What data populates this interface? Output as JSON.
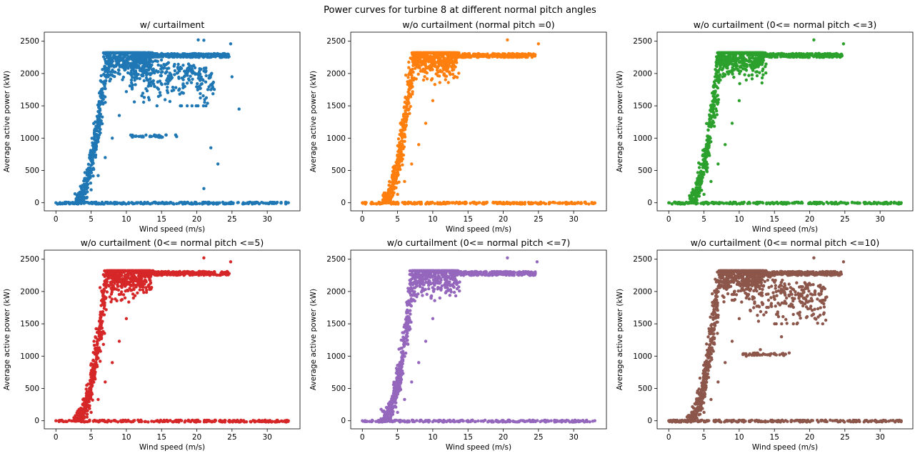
{
  "figure": {
    "suptitle": "Power curves for turbine 8 at different normal pitch angles"
  },
  "chart_data": [
    {
      "type": "scatter",
      "title": "w/ curtailment",
      "xlabel": "Wind speed (m/s)",
      "ylabel": "Average active power (kW)",
      "xlim": [
        -1.65,
        34.65
      ],
      "ylim": [
        -125,
        2640
      ],
      "xticks": [
        0,
        5,
        10,
        15,
        20,
        25,
        30
      ],
      "yticks": [
        0,
        500,
        1000,
        1500,
        2000,
        2500
      ],
      "color": "#1f77b4",
      "curtailed": true,
      "grid": false,
      "series": [
        {
          "points": [
            [
              0,
              0
            ],
            [
              2,
              0
            ],
            [
              3,
              10
            ],
            [
              4,
              60
            ],
            [
              5,
              200
            ],
            [
              6,
              420
            ],
            [
              7,
              700
            ],
            [
              8,
              1000
            ],
            [
              9,
              1350
            ],
            [
              10,
              1720
            ],
            [
              11,
              2050
            ],
            [
              12,
              2270
            ],
            [
              13,
              2310
            ],
            [
              15,
              2310
            ],
            [
              18,
              2300
            ],
            [
              21,
              2290
            ],
            [
              23,
              2275
            ],
            [
              24.5,
              2270
            ],
            [
              11,
              1030
            ],
            [
              14,
              1050
            ],
            [
              17,
              1050
            ],
            [
              14,
              1800
            ],
            [
              18,
              1700
            ],
            [
              22,
              1750
            ],
            [
              20.2,
              2520
            ],
            [
              21,
              2515
            ],
            [
              24.8,
              2460
            ],
            [
              26,
              1450
            ],
            [
              22,
              850
            ],
            [
              23,
              600
            ],
            [
              21,
              220
            ],
            [
              25,
              1950
            ],
            [
              33,
              0
            ]
          ]
        }
      ]
    },
    {
      "type": "scatter",
      "title": "w/o curtailment (normal pitch =0)",
      "xlabel": "Wind speed (m/s)",
      "ylabel": "Average active power (kW)",
      "xlim": [
        -1.65,
        34.65
      ],
      "ylim": [
        -125,
        2640
      ],
      "xticks": [
        0,
        5,
        10,
        15,
        20,
        25,
        30
      ],
      "yticks": [
        0,
        500,
        1000,
        1500,
        2000,
        2500
      ],
      "color": "#ff7f0e",
      "curtailed": false,
      "grid": false,
      "series": [
        {
          "points": [
            [
              0,
              0
            ],
            [
              3,
              10
            ],
            [
              4,
              40
            ],
            [
              5,
              130
            ],
            [
              6,
              330
            ],
            [
              7,
              600
            ],
            [
              8,
              900
            ],
            [
              9,
              1230
            ],
            [
              10,
              1580
            ],
            [
              11,
              1860
            ],
            [
              12,
              2050
            ],
            [
              13.7,
              2300
            ],
            [
              16,
              2300
            ],
            [
              20,
              2290
            ],
            [
              24.5,
              2270
            ],
            [
              20.6,
              2520
            ],
            [
              25,
              2460
            ],
            [
              33,
              0
            ]
          ]
        }
      ]
    },
    {
      "type": "scatter",
      "title": "w/o curtailment (0<= normal pitch <=3)",
      "xlabel": "Wind speed (m/s)",
      "ylabel": "Average active power (kW)",
      "xlim": [
        -1.65,
        34.65
      ],
      "ylim": [
        -125,
        2640
      ],
      "xticks": [
        0,
        5,
        10,
        15,
        20,
        25,
        30
      ],
      "yticks": [
        0,
        500,
        1000,
        1500,
        2000,
        2500
      ],
      "color": "#2ca02c",
      "curtailed": false,
      "grid": false,
      "series": [
        {
          "points": [
            [
              0,
              0
            ],
            [
              3,
              10
            ],
            [
              4,
              40
            ],
            [
              5,
              130
            ],
            [
              6,
              330
            ],
            [
              7,
              600
            ],
            [
              8,
              900
            ],
            [
              9,
              1230
            ],
            [
              10,
              1580
            ],
            [
              11,
              1900
            ],
            [
              12,
              2150
            ],
            [
              13,
              2300
            ],
            [
              16,
              2310
            ],
            [
              20,
              2290
            ],
            [
              24.5,
              2270
            ],
            [
              20.6,
              2520
            ],
            [
              24.8,
              2460
            ],
            [
              33,
              0
            ]
          ]
        }
      ]
    },
    {
      "type": "scatter",
      "title": "w/o curtailment (0<= normal pitch <=5)",
      "xlabel": "Wind speed (m/s)",
      "ylabel": "Average active power (kW)",
      "xlim": [
        -1.65,
        34.65
      ],
      "ylim": [
        -125,
        2640
      ],
      "xticks": [
        0,
        5,
        10,
        15,
        20,
        25,
        30
      ],
      "yticks": [
        0,
        500,
        1000,
        1500,
        2000,
        2500
      ],
      "color": "#d62728",
      "curtailed": false,
      "grid": false,
      "series": [
        {
          "points": [
            [
              0,
              0
            ],
            [
              3,
              10
            ],
            [
              4,
              40
            ],
            [
              5,
              130
            ],
            [
              6,
              330
            ],
            [
              7,
              600
            ],
            [
              8,
              900
            ],
            [
              9,
              1230
            ],
            [
              10,
              1580
            ],
            [
              11,
              1900
            ],
            [
              12,
              2150
            ],
            [
              13,
              2300
            ],
            [
              16,
              2310
            ],
            [
              20,
              2290
            ],
            [
              24.5,
              2270
            ],
            [
              21,
              2520
            ],
            [
              24.8,
              2460
            ],
            [
              33,
              0
            ]
          ]
        }
      ]
    },
    {
      "type": "scatter",
      "title": "w/o curtailment (0<= normal pitch <=7)",
      "xlabel": "Wind speed (m/s)",
      "ylabel": "Average active power (kW)",
      "xlim": [
        -1.65,
        34.65
      ],
      "ylim": [
        -125,
        2640
      ],
      "xticks": [
        0,
        5,
        10,
        15,
        20,
        25,
        30
      ],
      "yticks": [
        0,
        500,
        1000,
        1500,
        2000,
        2500
      ],
      "color": "#9467bd",
      "curtailed": false,
      "grid": false,
      "series": [
        {
          "points": [
            [
              0,
              0
            ],
            [
              3,
              10
            ],
            [
              4,
              40
            ],
            [
              5,
              130
            ],
            [
              6,
              330
            ],
            [
              7,
              600
            ],
            [
              8,
              900
            ],
            [
              9,
              1230
            ],
            [
              10,
              1580
            ],
            [
              11,
              1900
            ],
            [
              12,
              2150
            ],
            [
              13,
              2300
            ],
            [
              16,
              2310
            ],
            [
              20,
              2290
            ],
            [
              24.5,
              2270
            ],
            [
              20.6,
              2520
            ],
            [
              24.8,
              2460
            ],
            [
              33,
              0
            ]
          ]
        }
      ]
    },
    {
      "type": "scatter",
      "title": "w/o curtailment (0<= normal pitch <=10)",
      "xlabel": "Wind speed (m/s)",
      "ylabel": "Average active power (kW)",
      "xlim": [
        -1.65,
        34.65
      ],
      "ylim": [
        -125,
        2640
      ],
      "xticks": [
        0,
        5,
        10,
        15,
        20,
        25,
        30
      ],
      "yticks": [
        0,
        500,
        1000,
        1500,
        2000,
        2500
      ],
      "color": "#8c564b",
      "curtailed": true,
      "grid": false,
      "series": [
        {
          "points": [
            [
              0,
              0
            ],
            [
              3,
              10
            ],
            [
              4,
              40
            ],
            [
              5,
              130
            ],
            [
              6,
              330
            ],
            [
              7,
              600
            ],
            [
              8,
              900
            ],
            [
              9,
              1230
            ],
            [
              10,
              1580
            ],
            [
              11,
              1900
            ],
            [
              12,
              2150
            ],
            [
              13,
              2300
            ],
            [
              16,
              2310
            ],
            [
              20,
              2290
            ],
            [
              24.5,
              2270
            ],
            [
              11,
              1000
            ],
            [
              13,
              1100
            ],
            [
              18,
              1950
            ],
            [
              16,
              1300
            ],
            [
              20.6,
              2520
            ],
            [
              24.8,
              2460
            ],
            [
              33,
              0
            ]
          ]
        }
      ]
    }
  ]
}
